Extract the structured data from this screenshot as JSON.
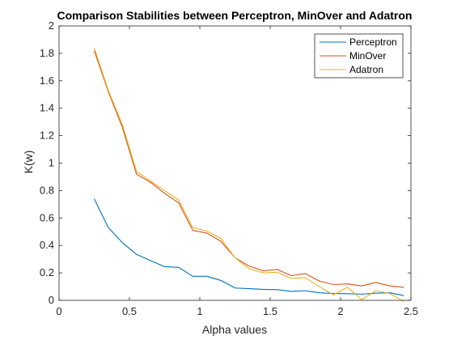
{
  "chart_data": {
    "type": "line",
    "title": "Comparison Stabilities between Perceptron, MinOver and Adatron",
    "xlabel": "Alpha values",
    "ylabel": "K(w)",
    "xlim": [
      0,
      2.5
    ],
    "ylim": [
      0,
      2
    ],
    "xticks": [
      0,
      0.5,
      1,
      1.5,
      2,
      2.5
    ],
    "xtick_labels": [
      "0",
      "0.5",
      "1",
      "1.5",
      "2",
      "2.5"
    ],
    "yticks": [
      0,
      0.2,
      0.4,
      0.6,
      0.8,
      1,
      1.2,
      1.4,
      1.6,
      1.8,
      2
    ],
    "ytick_labels": [
      "0",
      "0.2",
      "0.4",
      "0.6",
      "0.8",
      "1",
      "1.2",
      "1.4",
      "1.6",
      "1.8",
      "2"
    ],
    "grid": false,
    "legend_position": "top-right",
    "x": [
      0.25,
      0.35,
      0.45,
      0.55,
      0.65,
      0.75,
      0.85,
      0.95,
      1.05,
      1.15,
      1.25,
      1.35,
      1.45,
      1.55,
      1.65,
      1.75,
      1.85,
      1.95,
      2.05,
      2.15,
      2.25,
      2.35,
      2.45
    ],
    "series": [
      {
        "name": "Perceptron",
        "color": "#0072BD",
        "values": [
          0.74,
          0.53,
          0.42,
          0.335,
          0.29,
          0.245,
          0.24,
          0.175,
          0.175,
          0.145,
          0.09,
          0.085,
          0.08,
          0.078,
          0.065,
          0.07,
          0.055,
          0.05,
          0.048,
          0.045,
          0.052,
          0.055,
          0.035
        ]
      },
      {
        "name": "MinOver",
        "color": "#D95319",
        "values": [
          1.82,
          1.52,
          1.26,
          0.92,
          0.86,
          0.78,
          0.71,
          0.51,
          0.49,
          0.43,
          0.31,
          0.25,
          0.215,
          0.225,
          0.18,
          0.195,
          0.14,
          0.115,
          0.12,
          0.105,
          0.13,
          0.105,
          0.095
        ]
      },
      {
        "name": "Adatron",
        "color": "#EDB120",
        "values": [
          1.84,
          1.53,
          1.28,
          0.94,
          0.87,
          0.8,
          0.73,
          0.53,
          0.505,
          0.45,
          0.31,
          0.23,
          0.2,
          0.205,
          0.16,
          0.165,
          0.1,
          0.04,
          0.095,
          0.005,
          0.07,
          0.05,
          -0.01
        ]
      }
    ]
  }
}
